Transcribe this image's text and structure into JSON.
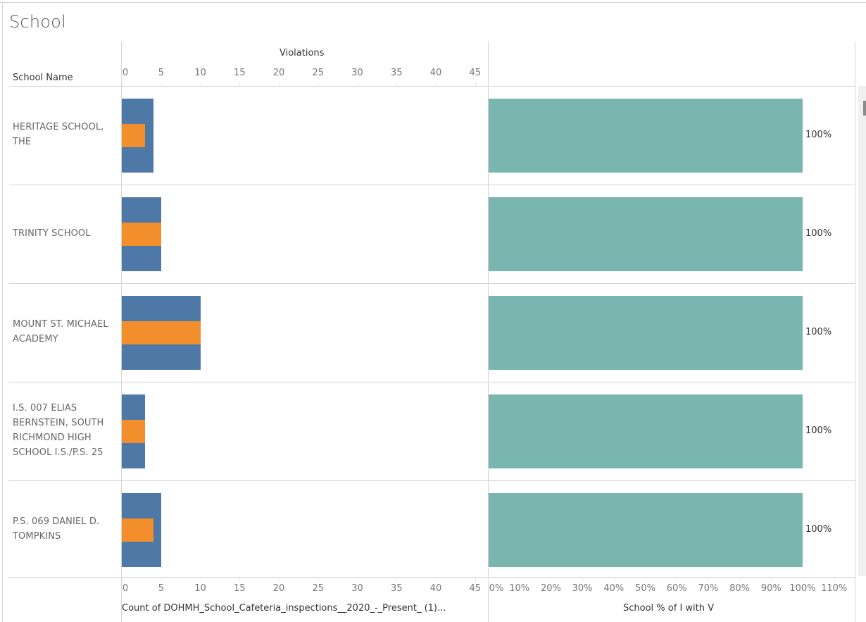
{
  "sheet": {
    "title": "School"
  },
  "headers": {
    "row_dimension": "School Name",
    "violations_axis_title": "Violations",
    "count_axis_title": "Count of DOHMH_School_Cafeteria_inspections__2020_-_Present_ (1)...",
    "percent_axis_title": "School % of I with V"
  },
  "colors": {
    "count_bar": "#4e79a7",
    "violations_bar": "#f28e2b",
    "percent_bar": "#79b6af",
    "gridline": "#d4d4d4"
  },
  "chart_data": [
    {
      "type": "bar",
      "orientation": "horizontal",
      "title": "",
      "xlabel": "Count of DOHMH_School_Cafeteria_inspections__2020_-_Present_ (1)...",
      "xlabel_top": "Violations",
      "ylabel": "School Name",
      "xlim": [
        0,
        47
      ],
      "x_ticks": [
        "0",
        "5",
        "10",
        "15",
        "20",
        "25",
        "30",
        "35",
        "40",
        "45"
      ],
      "categories": [
        "HERITAGE SCHOOL, THE",
        "TRINITY SCHOOL",
        "MOUNT ST. MICHAEL ACADEMY",
        "I.S. 007 ELIAS BERNSTEIN, SOUTH RICHMOND HIGH SCHOOL I.S./P.S. 25",
        "P.S. 069 DANIEL D. TOMPKINS"
      ],
      "series": [
        {
          "name": "Count of DOHMH_School_Cafeteria_inspections__2020_-_Present_ (1)",
          "values": [
            4,
            5,
            10,
            3,
            5
          ]
        },
        {
          "name": "Violations",
          "values": [
            3,
            5,
            10,
            3,
            4
          ]
        }
      ],
      "grid": false
    },
    {
      "type": "bar",
      "orientation": "horizontal",
      "title": "",
      "xlabel": "School % of I with V",
      "xlim": [
        0,
        110
      ],
      "x_ticks": [
        "0%",
        "10%",
        "20%",
        "30%",
        "40%",
        "50%",
        "60%",
        "70%",
        "80%",
        "90%",
        "100%",
        "110%"
      ],
      "categories": [
        "HERITAGE SCHOOL, THE",
        "TRINITY SCHOOL",
        "MOUNT ST. MICHAEL ACADEMY",
        "I.S. 007 ELIAS BERNSTEIN, SOUTH RICHMOND HIGH SCHOOL I.S./P.S. 25",
        "P.S. 069 DANIEL D. TOMPKINS"
      ],
      "values": [
        100,
        100,
        100,
        100,
        100
      ],
      "value_labels": [
        "100%",
        "100%",
        "100%",
        "100%",
        "100%"
      ],
      "grid": false
    }
  ]
}
